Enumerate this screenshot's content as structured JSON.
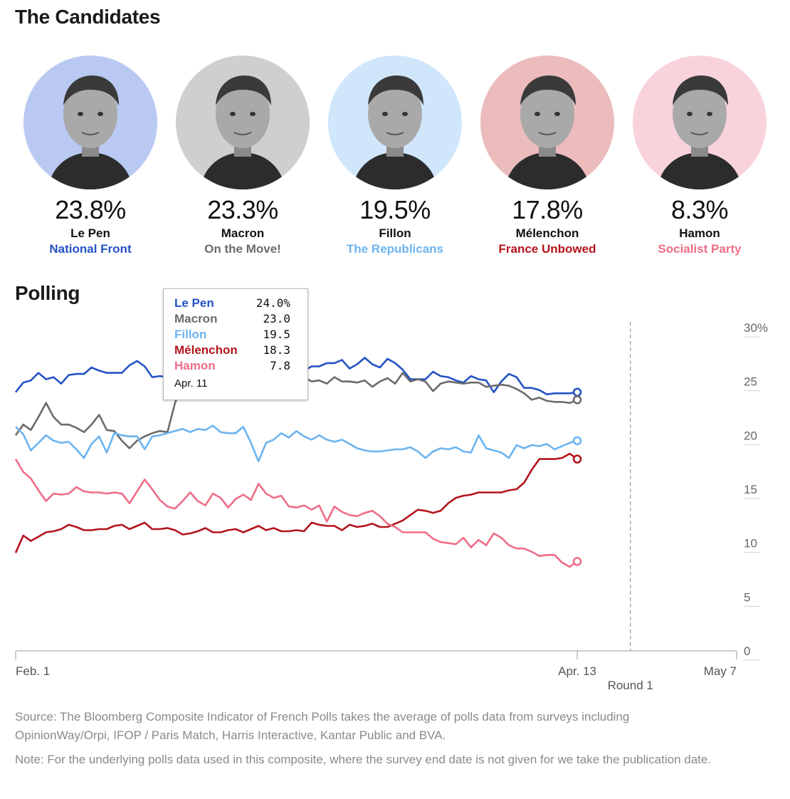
{
  "candidates_title": "The Candidates",
  "polling_title": "Polling",
  "candidates": [
    {
      "pct": "23.8%",
      "name": "Le Pen",
      "party": "National Front",
      "color": "#2452c4",
      "bg": "#b9c9f2"
    },
    {
      "pct": "23.3%",
      "name": "Macron",
      "party": "On the Move!",
      "color": "#6b6b6b",
      "bg": "#cfcfcf"
    },
    {
      "pct": "19.5%",
      "name": "Fillon",
      "party": "The Republicans",
      "color": "#6cb4f0",
      "bg": "#cfe6fb"
    },
    {
      "pct": "17.8%",
      "name": "Mélenchon",
      "party": "France Unbowed",
      "color": "#b3141c",
      "bg": "#ecbcbc"
    },
    {
      "pct": "8.3%",
      "name": "Hamon",
      "party": "Socialist Party",
      "color": "#ee6d88",
      "bg": "#f9d3dc"
    }
  ],
  "tooltip": {
    "rows": [
      {
        "name": "Le Pen",
        "value": "24.0%",
        "color": "#2452c4"
      },
      {
        "name": "Macron",
        "value": "23.0",
        "color": "#6b6b6b"
      },
      {
        "name": "Fillon",
        "value": "19.5",
        "color": "#6cb4f0"
      },
      {
        "name": "Mélenchon",
        "value": "18.3",
        "color": "#b3141c"
      },
      {
        "name": "Hamon",
        "value": "7.8",
        "color": "#ee6d88"
      }
    ],
    "date": "Apr. 11"
  },
  "chart_data": {
    "type": "line",
    "x_ticks": [
      "Feb. 1",
      "Apr. 13",
      "May 7"
    ],
    "y_ticks": [
      "30%",
      "25",
      "20",
      "15",
      "10",
      "5",
      "0"
    ],
    "ylim": [
      0,
      30
    ],
    "xlim": [
      0,
      95
    ],
    "annotation": "Round 1",
    "annotation_x": 81,
    "series": [
      {
        "name": "Le Pen",
        "color": "#2452c4",
        "values": [
          24.0,
          24.9,
          25.1,
          25.8,
          25.2,
          25.4,
          24.8,
          25.6,
          25.7,
          25.7,
          26.3,
          26.0,
          25.8,
          25.8,
          25.8,
          26.5,
          26.9,
          26.4,
          25.4,
          25.5,
          25.4,
          25.8,
          25.5,
          26.1,
          25.3,
          24.6,
          24.8,
          25.0,
          24.5,
          25.4,
          24.9,
          25.2,
          25.1,
          24.9,
          25.5,
          25.3,
          25.3,
          26.1,
          26.0,
          26.4,
          26.4,
          26.7,
          26.7,
          27.0,
          26.2,
          26.6,
          27.2,
          26.6,
          26.3,
          27.1,
          26.7,
          26.1,
          25.2,
          25.2,
          25.2,
          25.9,
          25.5,
          25.4,
          25.1,
          24.9,
          25.5,
          25.2,
          25.1,
          24.0,
          25.0,
          25.7,
          25.4,
          24.4,
          24.4,
          24.2,
          23.8,
          23.9,
          23.9,
          23.9,
          24.0
        ]
      },
      {
        "name": "Macron",
        "color": "#6b6b6b",
        "values": [
          20.0,
          21.0,
          20.5,
          21.7,
          23.0,
          21.7,
          21.0,
          21.0,
          20.7,
          20.3,
          21.0,
          21.9,
          20.5,
          20.4,
          19.5,
          18.8,
          19.5,
          19.9,
          20.2,
          20.4,
          20.3,
          23.0,
          24.8,
          25.0,
          24.6,
          24.1,
          24.6,
          24.0,
          24.2,
          24.0,
          23.6,
          24.0,
          23.5,
          24.1,
          25.0,
          24.4,
          23.8,
          25.2,
          25.4,
          25.0,
          25.1,
          24.8,
          25.4,
          25.0,
          25.0,
          24.9,
          25.1,
          24.5,
          25.0,
          25.3,
          24.8,
          25.8,
          25.0,
          25.2,
          25.0,
          24.1,
          24.8,
          25.0,
          24.9,
          24.8,
          24.9,
          24.9,
          24.5,
          24.6,
          24.7,
          24.6,
          24.3,
          23.9,
          23.3,
          23.5,
          23.2,
          23.1,
          23.1,
          23.0,
          23.3
        ]
      },
      {
        "name": "Fillon",
        "color": "#6cb4f0",
        "values": [
          20.8,
          20.1,
          18.6,
          19.3,
          20.0,
          19.5,
          19.3,
          19.4,
          18.7,
          17.9,
          19.2,
          19.9,
          18.4,
          20.2,
          20.0,
          19.9,
          19.9,
          18.7,
          19.9,
          20.0,
          20.2,
          20.4,
          20.6,
          20.3,
          20.6,
          20.5,
          20.9,
          20.3,
          20.2,
          20.2,
          20.8,
          19.3,
          17.6,
          19.3,
          19.6,
          20.2,
          19.8,
          20.4,
          19.9,
          19.6,
          20.0,
          19.6,
          19.4,
          19.6,
          19.2,
          18.8,
          18.6,
          18.5,
          18.5,
          18.6,
          18.7,
          18.7,
          18.9,
          18.5,
          17.9,
          18.5,
          18.8,
          18.7,
          18.9,
          18.5,
          18.4,
          20.0,
          18.8,
          18.6,
          18.4,
          17.9,
          19.1,
          18.8,
          19.1,
          19.0,
          19.2,
          18.7,
          19.0,
          19.3,
          19.5
        ]
      },
      {
        "name": "Mélenchon",
        "color": "#b3141c",
        "values": [
          9.1,
          10.7,
          10.2,
          10.6,
          11.0,
          11.1,
          11.3,
          11.7,
          11.5,
          11.2,
          11.2,
          11.3,
          11.3,
          11.6,
          11.7,
          11.3,
          11.6,
          11.9,
          11.3,
          11.3,
          11.4,
          11.2,
          10.8,
          10.9,
          11.1,
          11.4,
          11.0,
          11.0,
          11.2,
          11.3,
          11.0,
          11.3,
          11.6,
          11.2,
          11.4,
          11.1,
          11.1,
          11.2,
          11.1,
          11.9,
          11.7,
          11.6,
          11.6,
          11.2,
          11.7,
          11.5,
          11.6,
          11.8,
          11.5,
          11.5,
          11.8,
          12.1,
          12.6,
          13.1,
          13.0,
          12.8,
          13.0,
          13.7,
          14.2,
          14.4,
          14.5,
          14.7,
          14.7,
          14.7,
          14.7,
          14.9,
          15.0,
          15.6,
          16.8,
          17.8,
          17.8,
          17.8,
          17.9,
          18.3,
          17.8
        ]
      },
      {
        "name": "Hamon",
        "color": "#ee6d88",
        "values": [
          17.8,
          16.6,
          16.0,
          14.9,
          13.9,
          14.6,
          14.5,
          14.6,
          15.2,
          14.8,
          14.7,
          14.7,
          14.6,
          14.7,
          14.6,
          13.7,
          14.8,
          15.9,
          15.0,
          14.0,
          13.4,
          13.2,
          13.9,
          14.7,
          13.9,
          13.5,
          14.6,
          14.2,
          13.3,
          14.1,
          14.5,
          14.0,
          15.5,
          14.6,
          14.2,
          14.4,
          13.4,
          13.3,
          13.5,
          13.1,
          13.5,
          12.0,
          13.4,
          12.9,
          12.6,
          12.5,
          12.8,
          13.0,
          12.5,
          11.8,
          11.5,
          11.0,
          11.0,
          11.0,
          11.0,
          10.4,
          10.1,
          10.0,
          9.9,
          10.5,
          9.6,
          10.3,
          9.8,
          10.9,
          10.5,
          9.8,
          9.5,
          9.5,
          9.2,
          8.8,
          8.9,
          8.9,
          8.2,
          7.8,
          8.3
        ]
      }
    ]
  },
  "source_text": "Source: The Bloomberg Composite Indicator of French Polls takes the average of polls data from surveys including OpinionWay/Orpi, IFOP / Paris Match, Harris Interactive, Kantar Public and BVA.",
  "note_text": "Note: For the underlying polls data used in this composite, where the survey end date is not given for we take the publication date."
}
